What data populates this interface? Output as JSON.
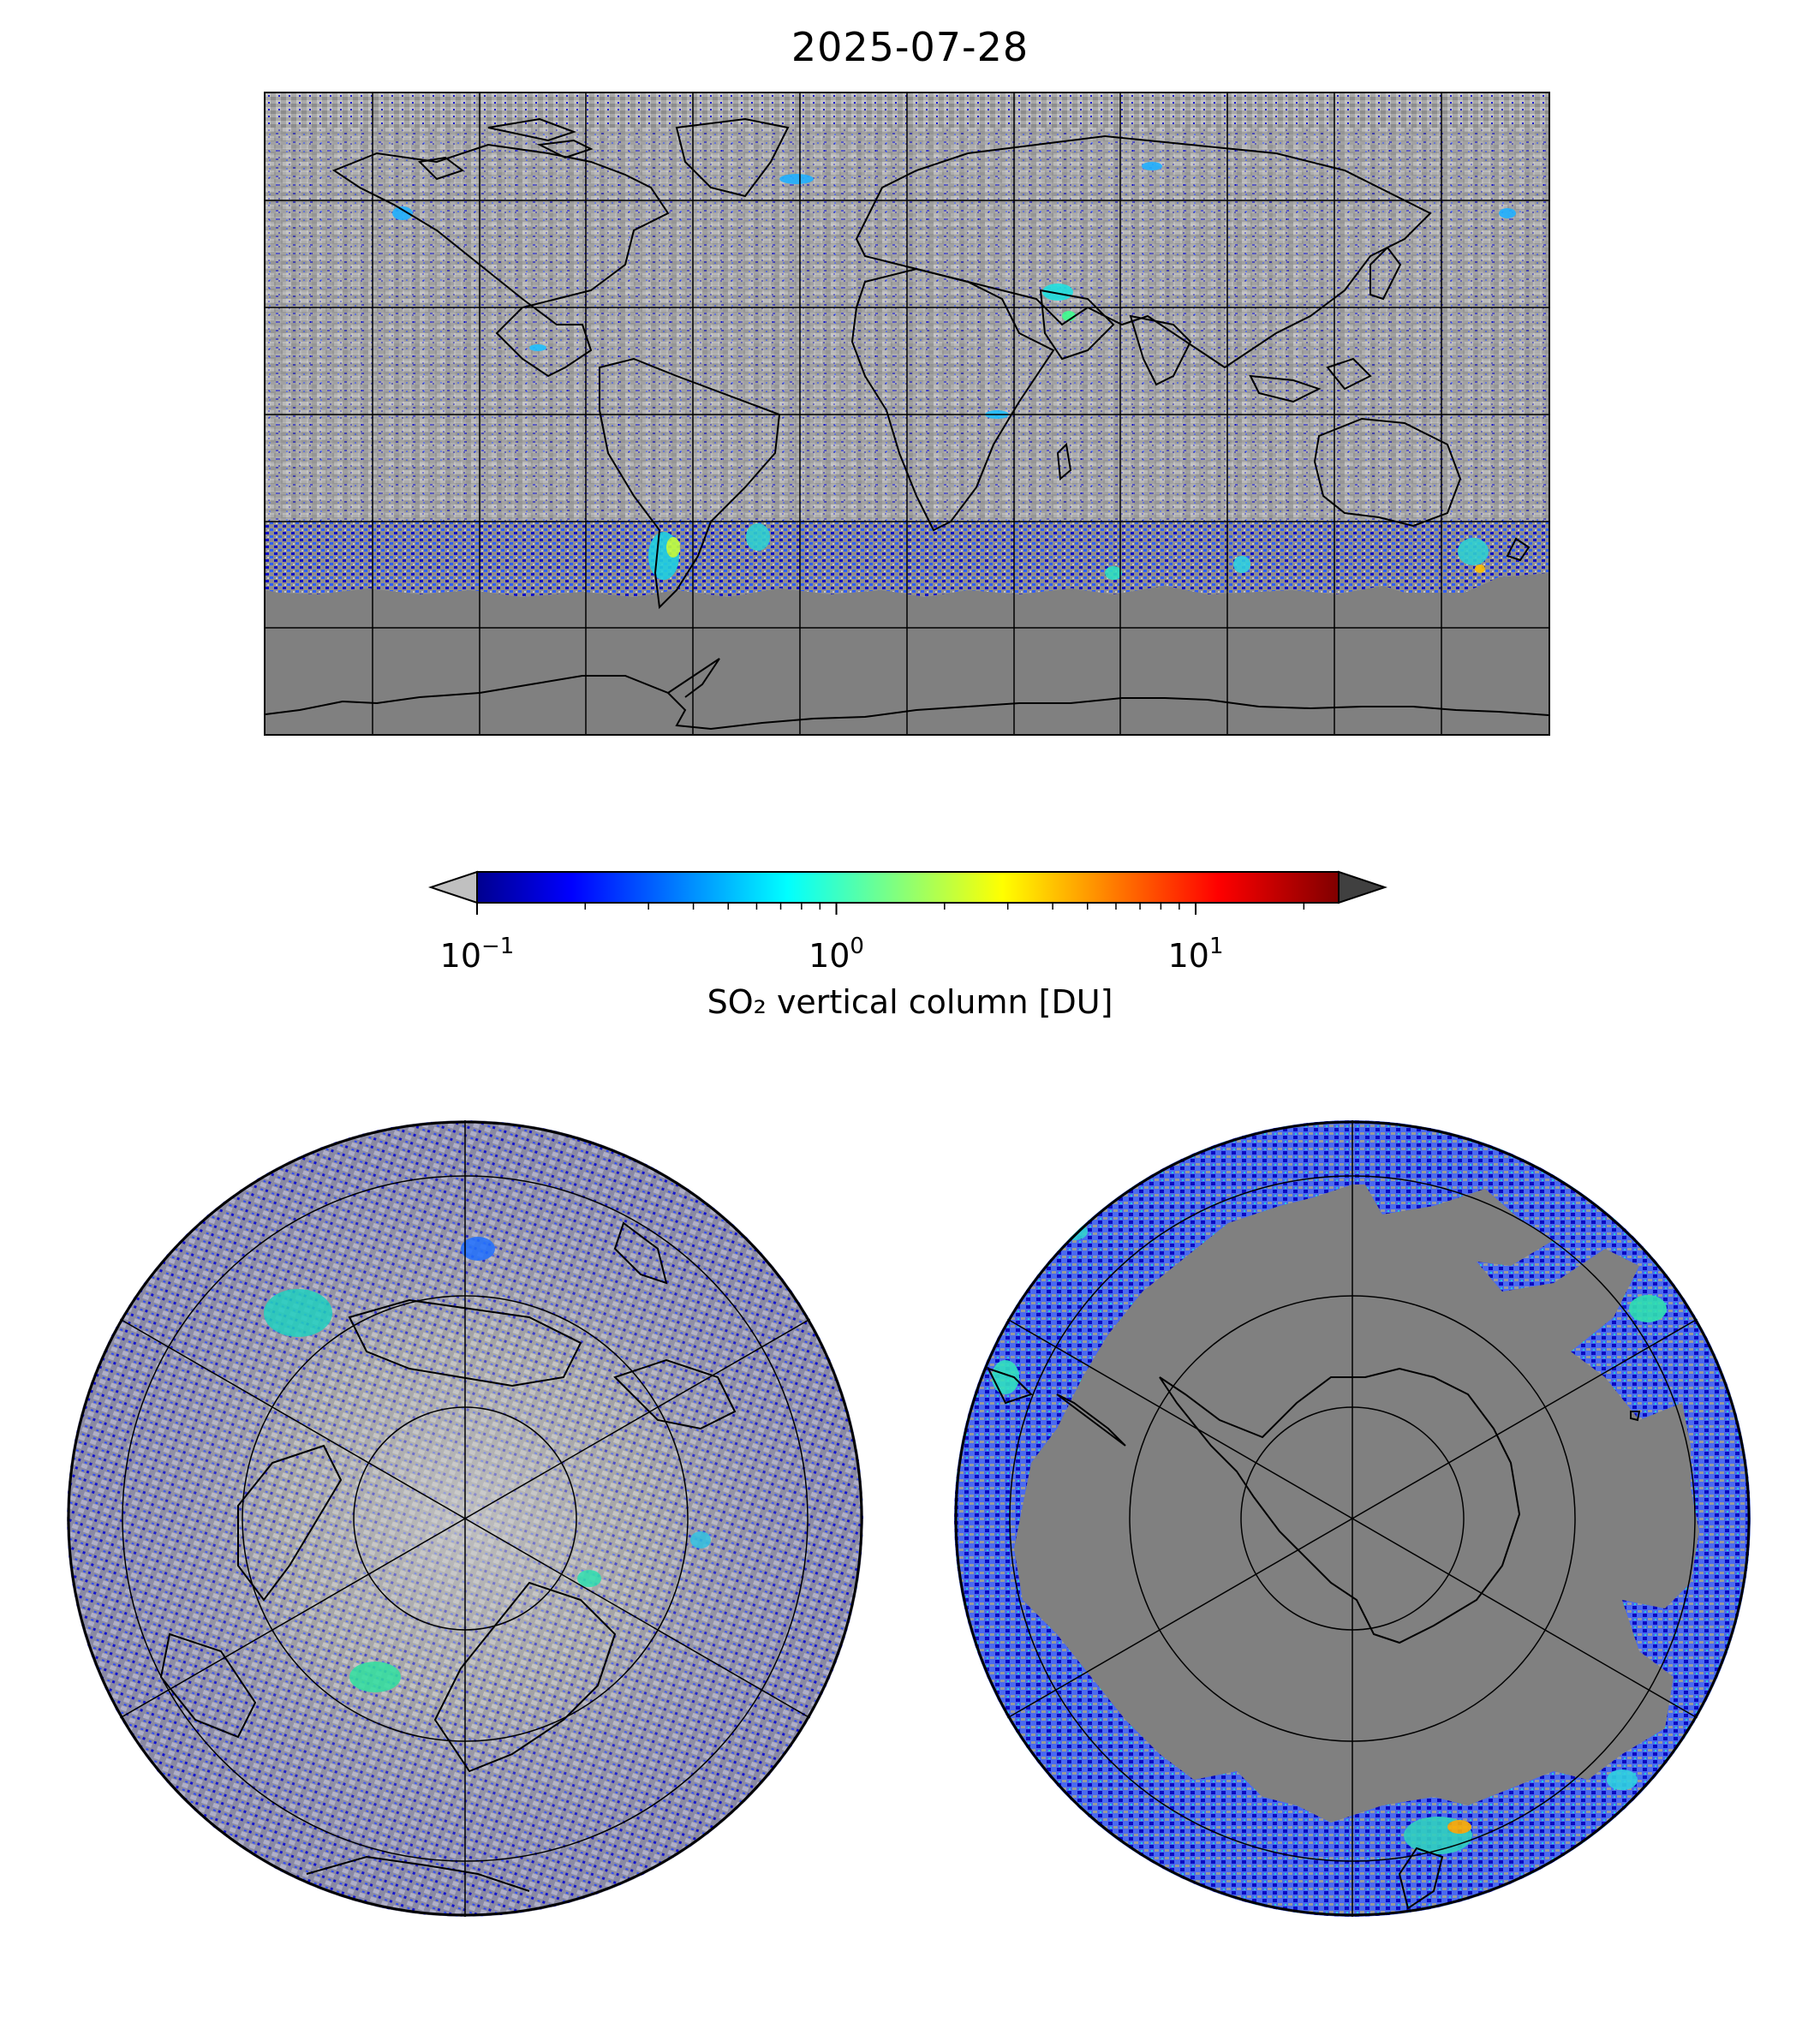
{
  "figure": {
    "title": "2025-07-28"
  },
  "colorbar": {
    "label": "SO₂ vertical column [DU]",
    "scale": "log",
    "range": [
      0.1,
      25
    ],
    "ticks": [
      {
        "base": "10",
        "exp": "−1",
        "value": 0.1
      },
      {
        "base": "10",
        "exp": "0",
        "value": 1
      },
      {
        "base": "10",
        "exp": "1",
        "value": 10
      }
    ],
    "colormap": "jet",
    "extend_low_color": "#c0c0c0",
    "extend_high_color": "#404040"
  },
  "maps": {
    "global": {
      "projection": "plate-carree",
      "no_data_color": "#808080",
      "low_value_color": "#bdbdbd"
    },
    "north_polar": {
      "projection": "north-polar-stereographic"
    },
    "south_polar": {
      "projection": "south-polar-stereographic"
    }
  }
}
